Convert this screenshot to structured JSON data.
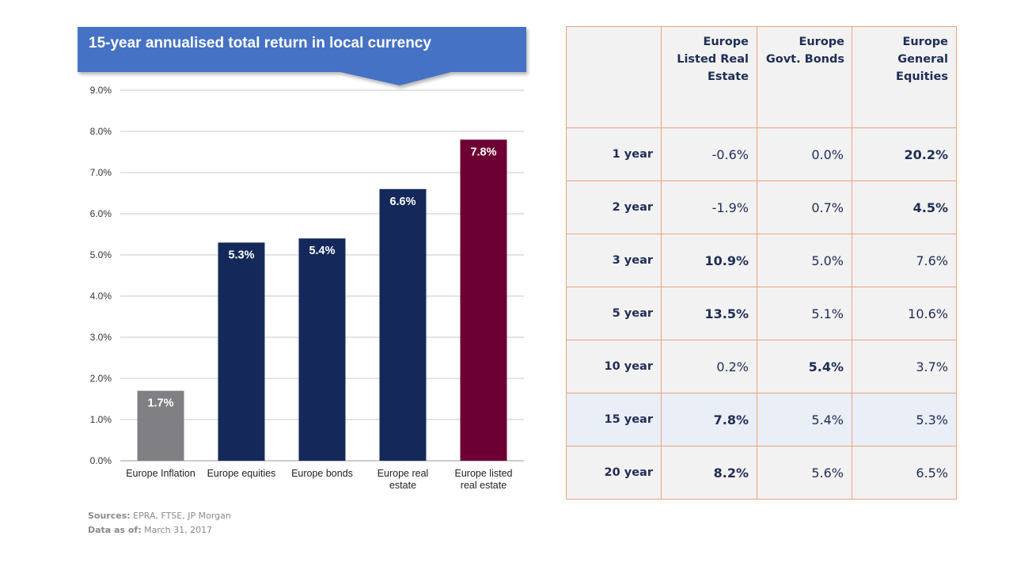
{
  "chart_data": {
    "type": "bar",
    "title": "15-year annualised total return in local currency",
    "categories": [
      [
        "Europe Inflation"
      ],
      [
        "Europe equities"
      ],
      [
        "Europe bonds"
      ],
      [
        "Europe real",
        "estate"
      ],
      [
        "Europe listed",
        "real estate"
      ]
    ],
    "values": [
      1.7,
      5.3,
      5.4,
      6.6,
      7.8
    ],
    "value_labels": [
      "1.7%",
      "5.3%",
      "5.4%",
      "6.6%",
      "7.8%"
    ],
    "bar_colors": [
      "#807f83",
      "#14295a",
      "#14295a",
      "#14295a",
      "#6d0033"
    ],
    "ylim": [
      0,
      9
    ],
    "yticks": [
      "0.0%",
      "1.0%",
      "2.0%",
      "3.0%",
      "4.0%",
      "5.0%",
      "6.0%",
      "7.0%",
      "8.0%",
      "9.0%"
    ],
    "xlabel": "",
    "ylabel": "",
    "grid": true,
    "banner_color": "#4472c4"
  },
  "sources": {
    "sources_label": "Sources:",
    "sources_value": " EPRA, FTSE, JP Morgan",
    "date_label": "Data as of:",
    "date_value": " March 31, 2017"
  },
  "table": {
    "headers": [
      "",
      "Europe Listed Real Estate",
      "Europe Govt. Bonds",
      "Europe General Equities"
    ],
    "rows": [
      {
        "period": "1 year",
        "values": [
          "-0.6%",
          "0.0%",
          "20.2%"
        ],
        "bold": [
          false,
          false,
          true
        ]
      },
      {
        "period": "2 year",
        "values": [
          "-1.9%",
          "0.7%",
          "4.5%"
        ],
        "bold": [
          false,
          false,
          true
        ]
      },
      {
        "period": "3 year",
        "values": [
          "10.9%",
          "5.0%",
          "7.6%"
        ],
        "bold": [
          true,
          false,
          false
        ]
      },
      {
        "period": "5 year",
        "values": [
          "13.5%",
          "5.1%",
          "10.6%"
        ],
        "bold": [
          true,
          false,
          false
        ]
      },
      {
        "period": "10 year",
        "values": [
          "0.2%",
          "5.4%",
          "3.7%"
        ],
        "bold": [
          false,
          true,
          false
        ]
      },
      {
        "period": "15 year",
        "values": [
          "7.8%",
          "5.4%",
          "5.3%"
        ],
        "bold": [
          true,
          false,
          false
        ],
        "highlight": true
      },
      {
        "period": "20 year",
        "values": [
          "8.2%",
          "5.6%",
          "6.5%"
        ],
        "bold": [
          true,
          false,
          false
        ]
      }
    ],
    "border_color": "#e8a67c",
    "text_color": "#1f2d56"
  }
}
